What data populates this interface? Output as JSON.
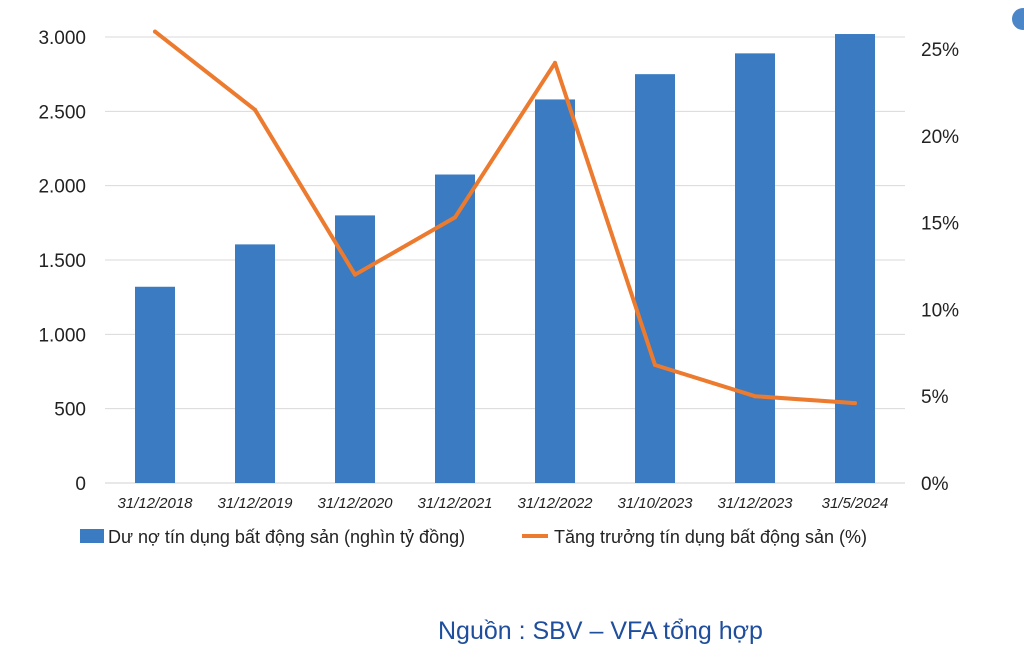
{
  "chart_data": {
    "type": "bar",
    "categories": [
      "31/12/2018",
      "31/12/2019",
      "31/12/2020",
      "31/12/2021",
      "31/12/2022",
      "31/10/2023",
      "31/12/2023",
      "31/5/2024"
    ],
    "series": [
      {
        "name": "Dư nợ tín dụng bất động sản (nghìn tỷ đồng)",
        "type": "bar",
        "axis": "left",
        "color": "#3a7bc1",
        "values": [
          1320,
          1605,
          1800,
          2075,
          2580,
          2750,
          2890,
          3020
        ]
      },
      {
        "name": "Tăng trưởng tín dụng bất động sản (%)",
        "type": "line",
        "axis": "right",
        "color": "#ec7b2f",
        "values": [
          26,
          21.5,
          12,
          15.3,
          24.2,
          6.8,
          5.0,
          4.6
        ]
      }
    ],
    "y_left": {
      "ylim": [
        0,
        3000
      ],
      "ticks": [
        0,
        500,
        1000,
        1500,
        2000,
        2500,
        3000
      ],
      "tick_labels": [
        "0",
        "500",
        "1.000",
        "1.500",
        "2.000",
        "2.500",
        "3.000"
      ]
    },
    "y_right": {
      "ylim": [
        0,
        25
      ],
      "ticks": [
        0,
        5,
        10,
        15,
        20,
        25
      ],
      "tick_labels": [
        "0%",
        "5%",
        "10%",
        "15%",
        "20%",
        "25%"
      ]
    },
    "grid": true,
    "legend": "bottom",
    "title": "",
    "xlabel": "",
    "ylabel": ""
  },
  "source_text": "Nguồn : SBV – VFA tổng hợp",
  "colors": {
    "bar": "#3a7bc1",
    "line": "#ec7b2f",
    "source": "#1f4e9c",
    "grid": "#d9d9d9"
  }
}
